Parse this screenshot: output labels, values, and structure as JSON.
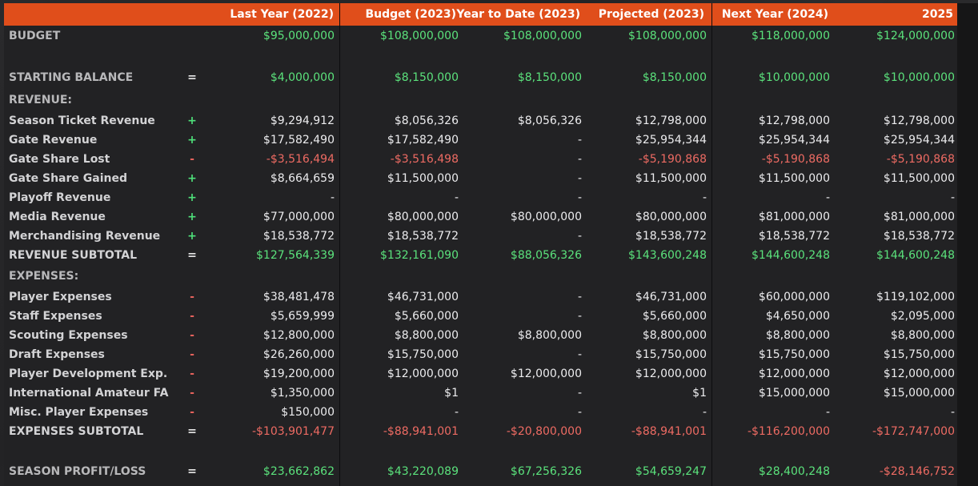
{
  "headers": [
    "Last Year (2022)",
    "Budget (2023)",
    "Year to Date (2023)",
    "Projected (2023)",
    "Next Year (2024)",
    "2025"
  ],
  "colors": {
    "header_bg": "#e04e1b",
    "positive": "#5be27c",
    "negative": "#ee6b63",
    "plus_sign": "#4ee07a",
    "minus_sign": "#e4625c"
  },
  "rows": [
    {
      "label": "BUDGET",
      "op": "",
      "kind": "section",
      "values": [
        "$95,000,000",
        "$108,000,000",
        "$108,000,000",
        "$108,000,000",
        "$118,000,000",
        "$124,000,000"
      ],
      "tone": [
        "pos",
        "pos",
        "pos",
        "pos",
        "pos",
        "pos"
      ]
    },
    {
      "label": "STARTING BALANCE",
      "op": "=",
      "kind": "section",
      "values": [
        "$4,000,000",
        "$8,150,000",
        "$8,150,000",
        "$8,150,000",
        "$10,000,000",
        "$10,000,000"
      ],
      "tone": [
        "pos",
        "pos",
        "pos",
        "pos",
        "pos",
        "pos"
      ]
    },
    {
      "label": "REVENUE:",
      "op": "",
      "kind": "section",
      "values": [
        "",
        "",
        "",
        "",
        "",
        ""
      ],
      "tone": [
        "",
        "",
        "",
        "",
        "",
        ""
      ]
    },
    {
      "label": "Season Ticket Revenue",
      "op": "+",
      "kind": "item",
      "values": [
        "$9,294,912",
        "$8,056,326",
        "$8,056,326",
        "$12,798,000",
        "$12,798,000",
        "$12,798,000"
      ],
      "tone": [
        "",
        "",
        "",
        "",
        "",
        ""
      ]
    },
    {
      "label": "Gate Revenue",
      "op": "+",
      "kind": "item",
      "values": [
        "$17,582,490",
        "$17,582,490",
        "-",
        "$25,954,344",
        "$25,954,344",
        "$25,954,344"
      ],
      "tone": [
        "",
        "",
        "",
        "",
        "",
        ""
      ]
    },
    {
      "label": "Gate Share Lost",
      "op": "-",
      "kind": "item",
      "values": [
        "-$3,516,494",
        "-$3,516,498",
        "-",
        "-$5,190,868",
        "-$5,190,868",
        "-$5,190,868"
      ],
      "tone": [
        "neg",
        "neg",
        "",
        "neg",
        "neg",
        "neg"
      ]
    },
    {
      "label": "Gate Share Gained",
      "op": "+",
      "kind": "item",
      "values": [
        "$8,664,659",
        "$11,500,000",
        "-",
        "$11,500,000",
        "$11,500,000",
        "$11,500,000"
      ],
      "tone": [
        "",
        "",
        "",
        "",
        "",
        ""
      ]
    },
    {
      "label": "Playoff Revenue",
      "op": "+",
      "kind": "item",
      "values": [
        "-",
        "-",
        "-",
        "-",
        "-",
        "-"
      ],
      "tone": [
        "",
        "",
        "",
        "",
        "",
        ""
      ]
    },
    {
      "label": "Media Revenue",
      "op": "+",
      "kind": "item",
      "values": [
        "$77,000,000",
        "$80,000,000",
        "$80,000,000",
        "$80,000,000",
        "$81,000,000",
        "$81,000,000"
      ],
      "tone": [
        "",
        "",
        "",
        "",
        "",
        ""
      ]
    },
    {
      "label": "Merchandising Revenue",
      "op": "+",
      "kind": "item",
      "values": [
        "$18,538,772",
        "$18,538,772",
        "-",
        "$18,538,772",
        "$18,538,772",
        "$18,538,772"
      ],
      "tone": [
        "",
        "",
        "",
        "",
        "",
        ""
      ]
    },
    {
      "label": "REVENUE SUBTOTAL",
      "op": "=",
      "kind": "total",
      "values": [
        "$127,564,339",
        "$132,161,090",
        "$88,056,326",
        "$143,600,248",
        "$144,600,248",
        "$144,600,248"
      ],
      "tone": [
        "pos",
        "pos",
        "pos",
        "pos",
        "pos",
        "pos"
      ]
    },
    {
      "label": "EXPENSES:",
      "op": "",
      "kind": "section",
      "values": [
        "",
        "",
        "",
        "",
        "",
        ""
      ],
      "tone": [
        "",
        "",
        "",
        "",
        "",
        ""
      ]
    },
    {
      "label": "Player Expenses",
      "op": "-",
      "kind": "item",
      "values": [
        "$38,481,478",
        "$46,731,000",
        "-",
        "$46,731,000",
        "$60,000,000",
        "$119,102,000"
      ],
      "tone": [
        "",
        "",
        "",
        "",
        "",
        ""
      ]
    },
    {
      "label": "Staff Expenses",
      "op": "-",
      "kind": "item",
      "values": [
        "$5,659,999",
        "$5,660,000",
        "-",
        "$5,660,000",
        "$4,650,000",
        "$2,095,000"
      ],
      "tone": [
        "",
        "",
        "",
        "",
        "",
        ""
      ]
    },
    {
      "label": "Scouting Expenses",
      "op": "-",
      "kind": "item",
      "values": [
        "$12,800,000",
        "$8,800,000",
        "$8,800,000",
        "$8,800,000",
        "$8,800,000",
        "$8,800,000"
      ],
      "tone": [
        "",
        "",
        "",
        "",
        "",
        ""
      ]
    },
    {
      "label": "Draft Expenses",
      "op": "-",
      "kind": "item",
      "values": [
        "$26,260,000",
        "$15,750,000",
        "-",
        "$15,750,000",
        "$15,750,000",
        "$15,750,000"
      ],
      "tone": [
        "",
        "",
        "",
        "",
        "",
        ""
      ]
    },
    {
      "label": "Player Development Exp.",
      "op": "-",
      "kind": "item",
      "values": [
        "$19,200,000",
        "$12,000,000",
        "$12,000,000",
        "$12,000,000",
        "$12,000,000",
        "$12,000,000"
      ],
      "tone": [
        "",
        "",
        "",
        "",
        "",
        ""
      ]
    },
    {
      "label": "International Amateur FA",
      "op": "-",
      "kind": "item",
      "values": [
        "$1,350,000",
        "$1",
        "-",
        "$1",
        "$15,000,000",
        "$15,000,000"
      ],
      "tone": [
        "",
        "",
        "",
        "",
        "",
        ""
      ]
    },
    {
      "label": "Misc. Player Expenses",
      "op": "-",
      "kind": "item",
      "values": [
        "$150,000",
        "-",
        "-",
        "-",
        "-",
        "-"
      ],
      "tone": [
        "",
        "",
        "",
        "",
        "",
        ""
      ]
    },
    {
      "label": "EXPENSES SUBTOTAL",
      "op": "=",
      "kind": "total",
      "values": [
        "-$103,901,477",
        "-$88,941,001",
        "-$20,800,000",
        "-$88,941,001",
        "-$116,200,000",
        "-$172,747,000"
      ],
      "tone": [
        "neg",
        "neg",
        "neg",
        "neg",
        "neg",
        "neg"
      ]
    },
    {
      "label": "SEASON PROFIT/LOSS",
      "op": "=",
      "kind": "section",
      "values": [
        "$23,662,862",
        "$43,220,089",
        "$67,256,326",
        "$54,659,247",
        "$28,400,248",
        "-$28,146,752"
      ],
      "tone": [
        "pos",
        "pos",
        "pos",
        "pos",
        "pos",
        "neg"
      ]
    }
  ]
}
